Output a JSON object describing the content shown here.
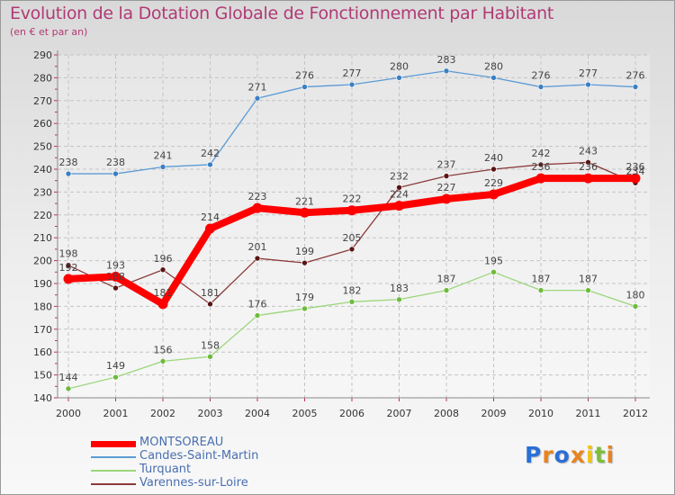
{
  "chart_data": {
    "type": "line",
    "title": "Evolution de la Dotation Globale de Fonctionnement par Habitant",
    "subtitle": "(en € et par an)",
    "x": [
      "2000",
      "2001",
      "2002",
      "2003",
      "2004",
      "2005",
      "2006",
      "2007",
      "2008",
      "2009",
      "2010",
      "2011",
      "2012"
    ],
    "ylim": [
      140,
      290
    ],
    "yticks": [
      140,
      150,
      160,
      170,
      180,
      190,
      200,
      210,
      220,
      230,
      240,
      250,
      260,
      270,
      280,
      290
    ],
    "grid": true,
    "legend_position": "bottom-left",
    "series": [
      {
        "name": "Candes-Saint-Martin",
        "color": "#5b9bd5",
        "marker": "#3a7fc1",
        "values": [
          238,
          238,
          241,
          242,
          271,
          276,
          277,
          280,
          283,
          280,
          276,
          277,
          276
        ]
      },
      {
        "name": "Turquant",
        "color": "#9bd67a",
        "marker": "#6dbb3c",
        "values": [
          144,
          149,
          156,
          158,
          176,
          179,
          182,
          183,
          187,
          195,
          187,
          187,
          180
        ]
      },
      {
        "name": "Varennes-sur-Loire",
        "color": "#8b3a3a",
        "marker": "#5a1414",
        "values": [
          198,
          188,
          196,
          181,
          201,
          199,
          205,
          232,
          237,
          240,
          242,
          243,
          234
        ]
      },
      {
        "name": "MONTSOREAU",
        "color": "#ff0000",
        "marker": "#ff0000",
        "thick": true,
        "values": [
          192,
          193,
          181,
          214,
          223,
          221,
          222,
          224,
          227,
          229,
          236,
          236,
          236
        ]
      }
    ]
  },
  "legend": [
    {
      "label": "MONTSOREAU",
      "color": "#ff0000",
      "thick": true
    },
    {
      "label": "Candes-Saint-Martin",
      "color": "#5b9bd5"
    },
    {
      "label": "Turquant",
      "color": "#9bd67a"
    },
    {
      "label": "Varennes-sur-Loire",
      "color": "#8b3a3a"
    }
  ],
  "brand": {
    "letters": [
      "P",
      "r",
      "o",
      "x",
      "i",
      "t",
      "i"
    ],
    "colors": [
      "#2a6fd6",
      "#e8831e",
      "#2a6fd6",
      "#e8831e",
      "#f0c419",
      "#7bbf3a",
      "#e8831e"
    ]
  }
}
